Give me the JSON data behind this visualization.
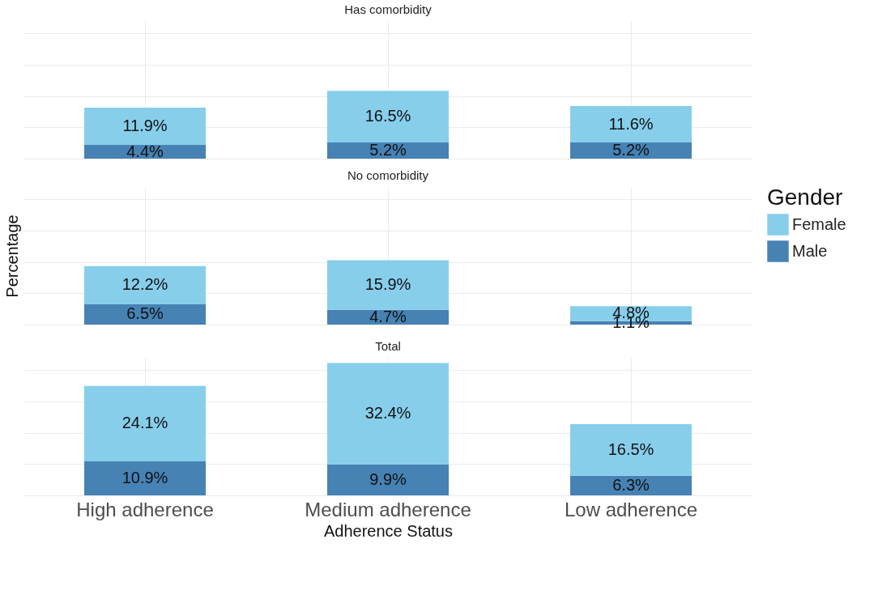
{
  "chart_data": [
    {
      "type": "bar",
      "title": "Has comorbidity",
      "categories": [
        null,
        null,
        null
      ],
      "stacked": true,
      "ylim": [
        0,
        44
      ],
      "yticks": [
        {
          "value": 0,
          "label": null
        },
        {
          "value": 10,
          "label": null
        },
        {
          "value": 20,
          "label": null
        },
        {
          "value": 30,
          "label": null
        },
        {
          "value": 40,
          "label": null
        }
      ],
      "grid": true,
      "tick_labels": false,
      "series": [
        {
          "color": "#4682b4",
          "values": [
            4.4,
            5.2,
            5.2
          ],
          "value_labels": [
            "4.4%",
            "5.2%",
            "5.2%"
          ]
        },
        {
          "color": "#87ceeb",
          "values": [
            11.9,
            16.5,
            11.6
          ],
          "value_labels": [
            "11.9%",
            "16.5%",
            "11.6%"
          ]
        }
      ]
    },
    {
      "type": "bar",
      "title": "No comorbidity",
      "ylabel": "Percentage",
      "legend_title": "Gender",
      "legend": "right",
      "categories": [
        null,
        null,
        null
      ],
      "stacked": true,
      "ylim": [
        0,
        44
      ],
      "yticks": [
        {
          "value": 0,
          "label": null
        },
        {
          "value": 10,
          "label": null
        },
        {
          "value": 20,
          "label": null
        },
        {
          "value": 30,
          "label": null
        },
        {
          "value": 40,
          "label": null
        }
      ],
      "grid": true,
      "tick_labels": false,
      "series": [
        {
          "name": "Male",
          "color": "#4682b4",
          "values": [
            6.5,
            4.7,
            1.1
          ],
          "value_labels": [
            "6.5%",
            "4.7%",
            "1.1%"
          ]
        },
        {
          "name": "Female",
          "color": "#87ceeb",
          "values": [
            12.2,
            15.9,
            4.8
          ],
          "value_labels": [
            "12.2%",
            "15.9%",
            "4.8%"
          ]
        }
      ]
    },
    {
      "type": "bar",
      "title": "Total",
      "xlabel": "Adherence Status",
      "categories": [
        "High adherence",
        "Medium adherence",
        "Low adherence"
      ],
      "stacked": true,
      "ylim": [
        0,
        44
      ],
      "yticks": [
        {
          "value": 0,
          "label": null
        },
        {
          "value": 10,
          "label": null
        },
        {
          "value": 20,
          "label": null
        },
        {
          "value": 30,
          "label": null
        },
        {
          "value": 40,
          "label": null
        }
      ],
      "grid": true,
      "tick_labels": "x",
      "series": [
        {
          "color": "#4682b4",
          "values": [
            10.9,
            9.9,
            6.3
          ],
          "value_labels": [
            "10.9%",
            "9.9%",
            "6.3%"
          ]
        },
        {
          "color": "#87ceeb",
          "values": [
            24.1,
            32.4,
            16.5
          ],
          "value_labels": [
            "24.1%",
            "32.4%",
            "16.5%"
          ]
        }
      ]
    }
  ]
}
